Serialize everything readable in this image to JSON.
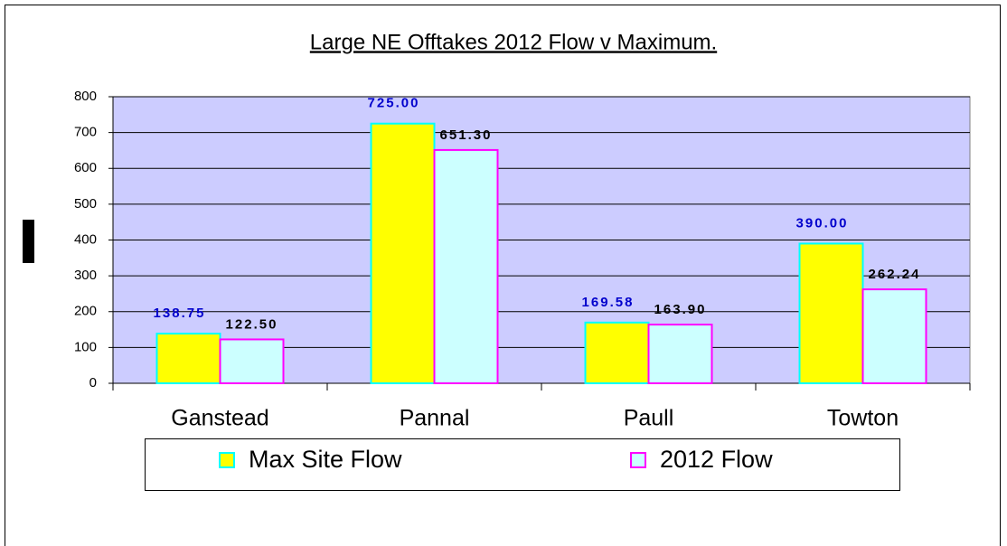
{
  "chart_data": {
    "type": "bar",
    "title": "Large NE Offtakes 2012 Flow  v Maximum.",
    "categories": [
      "Ganstead",
      "Pannal",
      "Paull",
      "Towton"
    ],
    "series": [
      {
        "name": "Max Site Flow",
        "color": "#ffff00",
        "edge": "#00ffff",
        "label_color": "#0000cc",
        "values": [
          138.75,
          725,
          169.58,
          390
        ],
        "value_labels": [
          "138.75",
          "725.00",
          "169.58",
          "390.00"
        ]
      },
      {
        "name": "2012 Flow",
        "color": "#ccffff",
        "edge": "#ff00ff",
        "label_color": "#000000",
        "values": [
          122.5,
          651.3,
          163.9,
          262.24
        ],
        "value_labels": [
          "122.50",
          "651.30",
          "163.90",
          "262.24"
        ]
      }
    ],
    "ylim": [
      0,
      800
    ],
    "yticks": [
      0,
      100,
      200,
      300,
      400,
      500,
      600,
      700,
      800
    ],
    "grid": true,
    "plot_color": "#ccccff"
  }
}
